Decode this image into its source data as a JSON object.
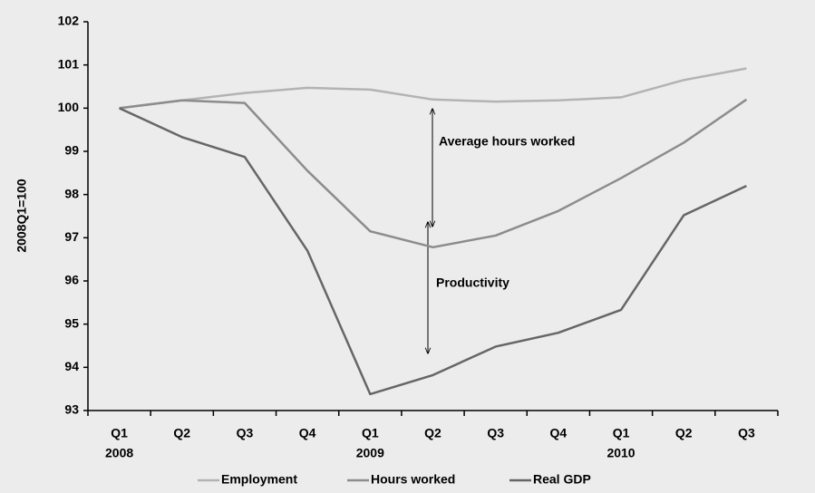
{
  "chart_data": {
    "type": "line",
    "y_label": "2008Q1=100",
    "categories": [
      "Q1",
      "Q2",
      "Q3",
      "Q4",
      "Q1",
      "Q2",
      "Q3",
      "Q4",
      "Q1",
      "Q2",
      "Q3"
    ],
    "year_labels": [
      "2008",
      null,
      null,
      null,
      "2009",
      null,
      null,
      null,
      "2010",
      null,
      null
    ],
    "series": [
      {
        "name": "Employment",
        "color": "#b3b3b3",
        "values": [
          100,
          100.18,
          100.35,
          100.47,
          100.43,
          100.2,
          100.15,
          100.18,
          100.25,
          100.65,
          100.92
        ]
      },
      {
        "name": "Hours worked",
        "color": "#8c8c8c",
        "values": [
          100,
          100.18,
          100.12,
          98.55,
          97.15,
          96.78,
          97.05,
          97.62,
          98.38,
          99.2,
          100.2
        ]
      },
      {
        "name": "Real GDP",
        "color": "#666666",
        "values": [
          100,
          99.33,
          98.87,
          96.7,
          93.38,
          93.82,
          94.48,
          94.8,
          95.33,
          97.52,
          98.2
        ]
      }
    ],
    "ylim": [
      93,
      102
    ],
    "yticks": [
      93,
      94,
      95,
      96,
      97,
      98,
      99,
      100,
      101,
      102
    ],
    "annotations": [
      "Average hours worked",
      "Productivity"
    ],
    "grid": false,
    "legend": "bottom"
  }
}
